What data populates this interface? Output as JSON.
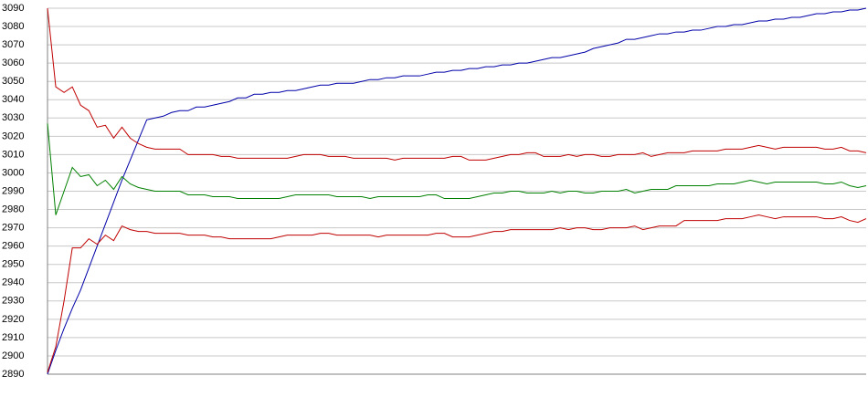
{
  "chart_data": {
    "type": "line",
    "ylim": [
      2890,
      3090
    ],
    "yticks": [
      2890,
      2900,
      2910,
      2920,
      2930,
      2940,
      2950,
      2960,
      2970,
      2980,
      2990,
      3000,
      3010,
      3020,
      3030,
      3040,
      3050,
      3060,
      3070,
      3080,
      3090
    ],
    "grid": true,
    "series": [
      {
        "color": "#0000a8",
        "values": [
          2890,
          2903,
          2915,
          2926,
          2936,
          2948,
          2960,
          2972,
          2984,
          2996,
          3007,
          3018,
          3029,
          3030,
          3031,
          3033,
          3034,
          3034,
          3036,
          3036,
          3037,
          3038,
          3039,
          3041,
          3041,
          3043,
          3043,
          3044,
          3044,
          3045,
          3045,
          3046,
          3047,
          3048,
          3048,
          3049,
          3049,
          3049,
          3050,
          3051,
          3051,
          3052,
          3052,
          3053,
          3053,
          3053,
          3054,
          3055,
          3055,
          3056,
          3056,
          3057,
          3057,
          3058,
          3058,
          3059,
          3059,
          3060,
          3060,
          3061,
          3062,
          3063,
          3063,
          3064,
          3065,
          3066,
          3068,
          3069,
          3070,
          3071,
          3073,
          3073,
          3074,
          3075,
          3076,
          3076,
          3077,
          3077,
          3078,
          3078,
          3079,
          3080,
          3080,
          3081,
          3081,
          3082,
          3083,
          3083,
          3084,
          3084,
          3085,
          3085,
          3086,
          3087,
          3087,
          3088,
          3088,
          3089,
          3089,
          3090
        ]
      },
      {
        "color": "#c00000",
        "values": [
          3090,
          3047,
          3044,
          3047,
          3037,
          3034,
          3025,
          3026,
          3019,
          3025,
          3019,
          3016,
          3014,
          3013,
          3013,
          3013,
          3013,
          3010,
          3010,
          3010,
          3010,
          3009,
          3009,
          3008,
          3008,
          3008,
          3008,
          3008,
          3008,
          3008,
          3009,
          3010,
          3010,
          3010,
          3009,
          3009,
          3009,
          3008,
          3008,
          3008,
          3008,
          3008,
          3007,
          3008,
          3008,
          3008,
          3008,
          3008,
          3008,
          3009,
          3009,
          3007,
          3007,
          3007,
          3008,
          3009,
          3010,
          3010,
          3011,
          3011,
          3009,
          3009,
          3009,
          3010,
          3009,
          3010,
          3010,
          3009,
          3009,
          3010,
          3010,
          3010,
          3011,
          3009,
          3010,
          3011,
          3011,
          3011,
          3012,
          3012,
          3012,
          3012,
          3013,
          3013,
          3013,
          3014,
          3015,
          3014,
          3013,
          3014,
          3014,
          3014,
          3014,
          3014,
          3013,
          3013,
          3014,
          3012,
          3012,
          3011
        ]
      },
      {
        "color": "#008000",
        "values": [
          3027,
          2977,
          2990,
          3003,
          2998,
          2999,
          2993,
          2996,
          2991,
          2998,
          2994,
          2992,
          2991,
          2990,
          2990,
          2990,
          2990,
          2988,
          2988,
          2988,
          2987,
          2987,
          2987,
          2986,
          2986,
          2986,
          2986,
          2986,
          2986,
          2987,
          2988,
          2988,
          2988,
          2988,
          2988,
          2987,
          2987,
          2987,
          2987,
          2986,
          2987,
          2987,
          2987,
          2987,
          2987,
          2987,
          2988,
          2988,
          2986,
          2986,
          2986,
          2986,
          2987,
          2988,
          2989,
          2989,
          2990,
          2990,
          2989,
          2989,
          2989,
          2990,
          2989,
          2990,
          2990,
          2989,
          2989,
          2990,
          2990,
          2990,
          2991,
          2989,
          2990,
          2991,
          2991,
          2991,
          2993,
          2993,
          2993,
          2993,
          2993,
          2994,
          2994,
          2994,
          2995,
          2996,
          2995,
          2994,
          2995,
          2995,
          2995,
          2995,
          2995,
          2995,
          2994,
          2994,
          2995,
          2993,
          2992,
          2993
        ]
      },
      {
        "color": "#c00000",
        "values": [
          2891,
          2905,
          2930,
          2959,
          2959,
          2964,
          2961,
          2966,
          2963,
          2971,
          2969,
          2968,
          2968,
          2967,
          2967,
          2967,
          2967,
          2966,
          2966,
          2966,
          2965,
          2965,
          2964,
          2964,
          2964,
          2964,
          2964,
          2964,
          2965,
          2966,
          2966,
          2966,
          2966,
          2967,
          2967,
          2966,
          2966,
          2966,
          2966,
          2966,
          2965,
          2966,
          2966,
          2966,
          2966,
          2966,
          2966,
          2967,
          2967,
          2965,
          2965,
          2965,
          2966,
          2967,
          2968,
          2968,
          2969,
          2969,
          2969,
          2969,
          2969,
          2969,
          2970,
          2969,
          2970,
          2970,
          2969,
          2969,
          2970,
          2970,
          2970,
          2971,
          2969,
          2970,
          2971,
          2971,
          2971,
          2974,
          2974,
          2974,
          2974,
          2974,
          2975,
          2975,
          2975,
          2976,
          2977,
          2976,
          2975,
          2976,
          2976,
          2976,
          2976,
          2976,
          2975,
          2975,
          2976,
          2974,
          2973,
          2975
        ]
      }
    ]
  }
}
